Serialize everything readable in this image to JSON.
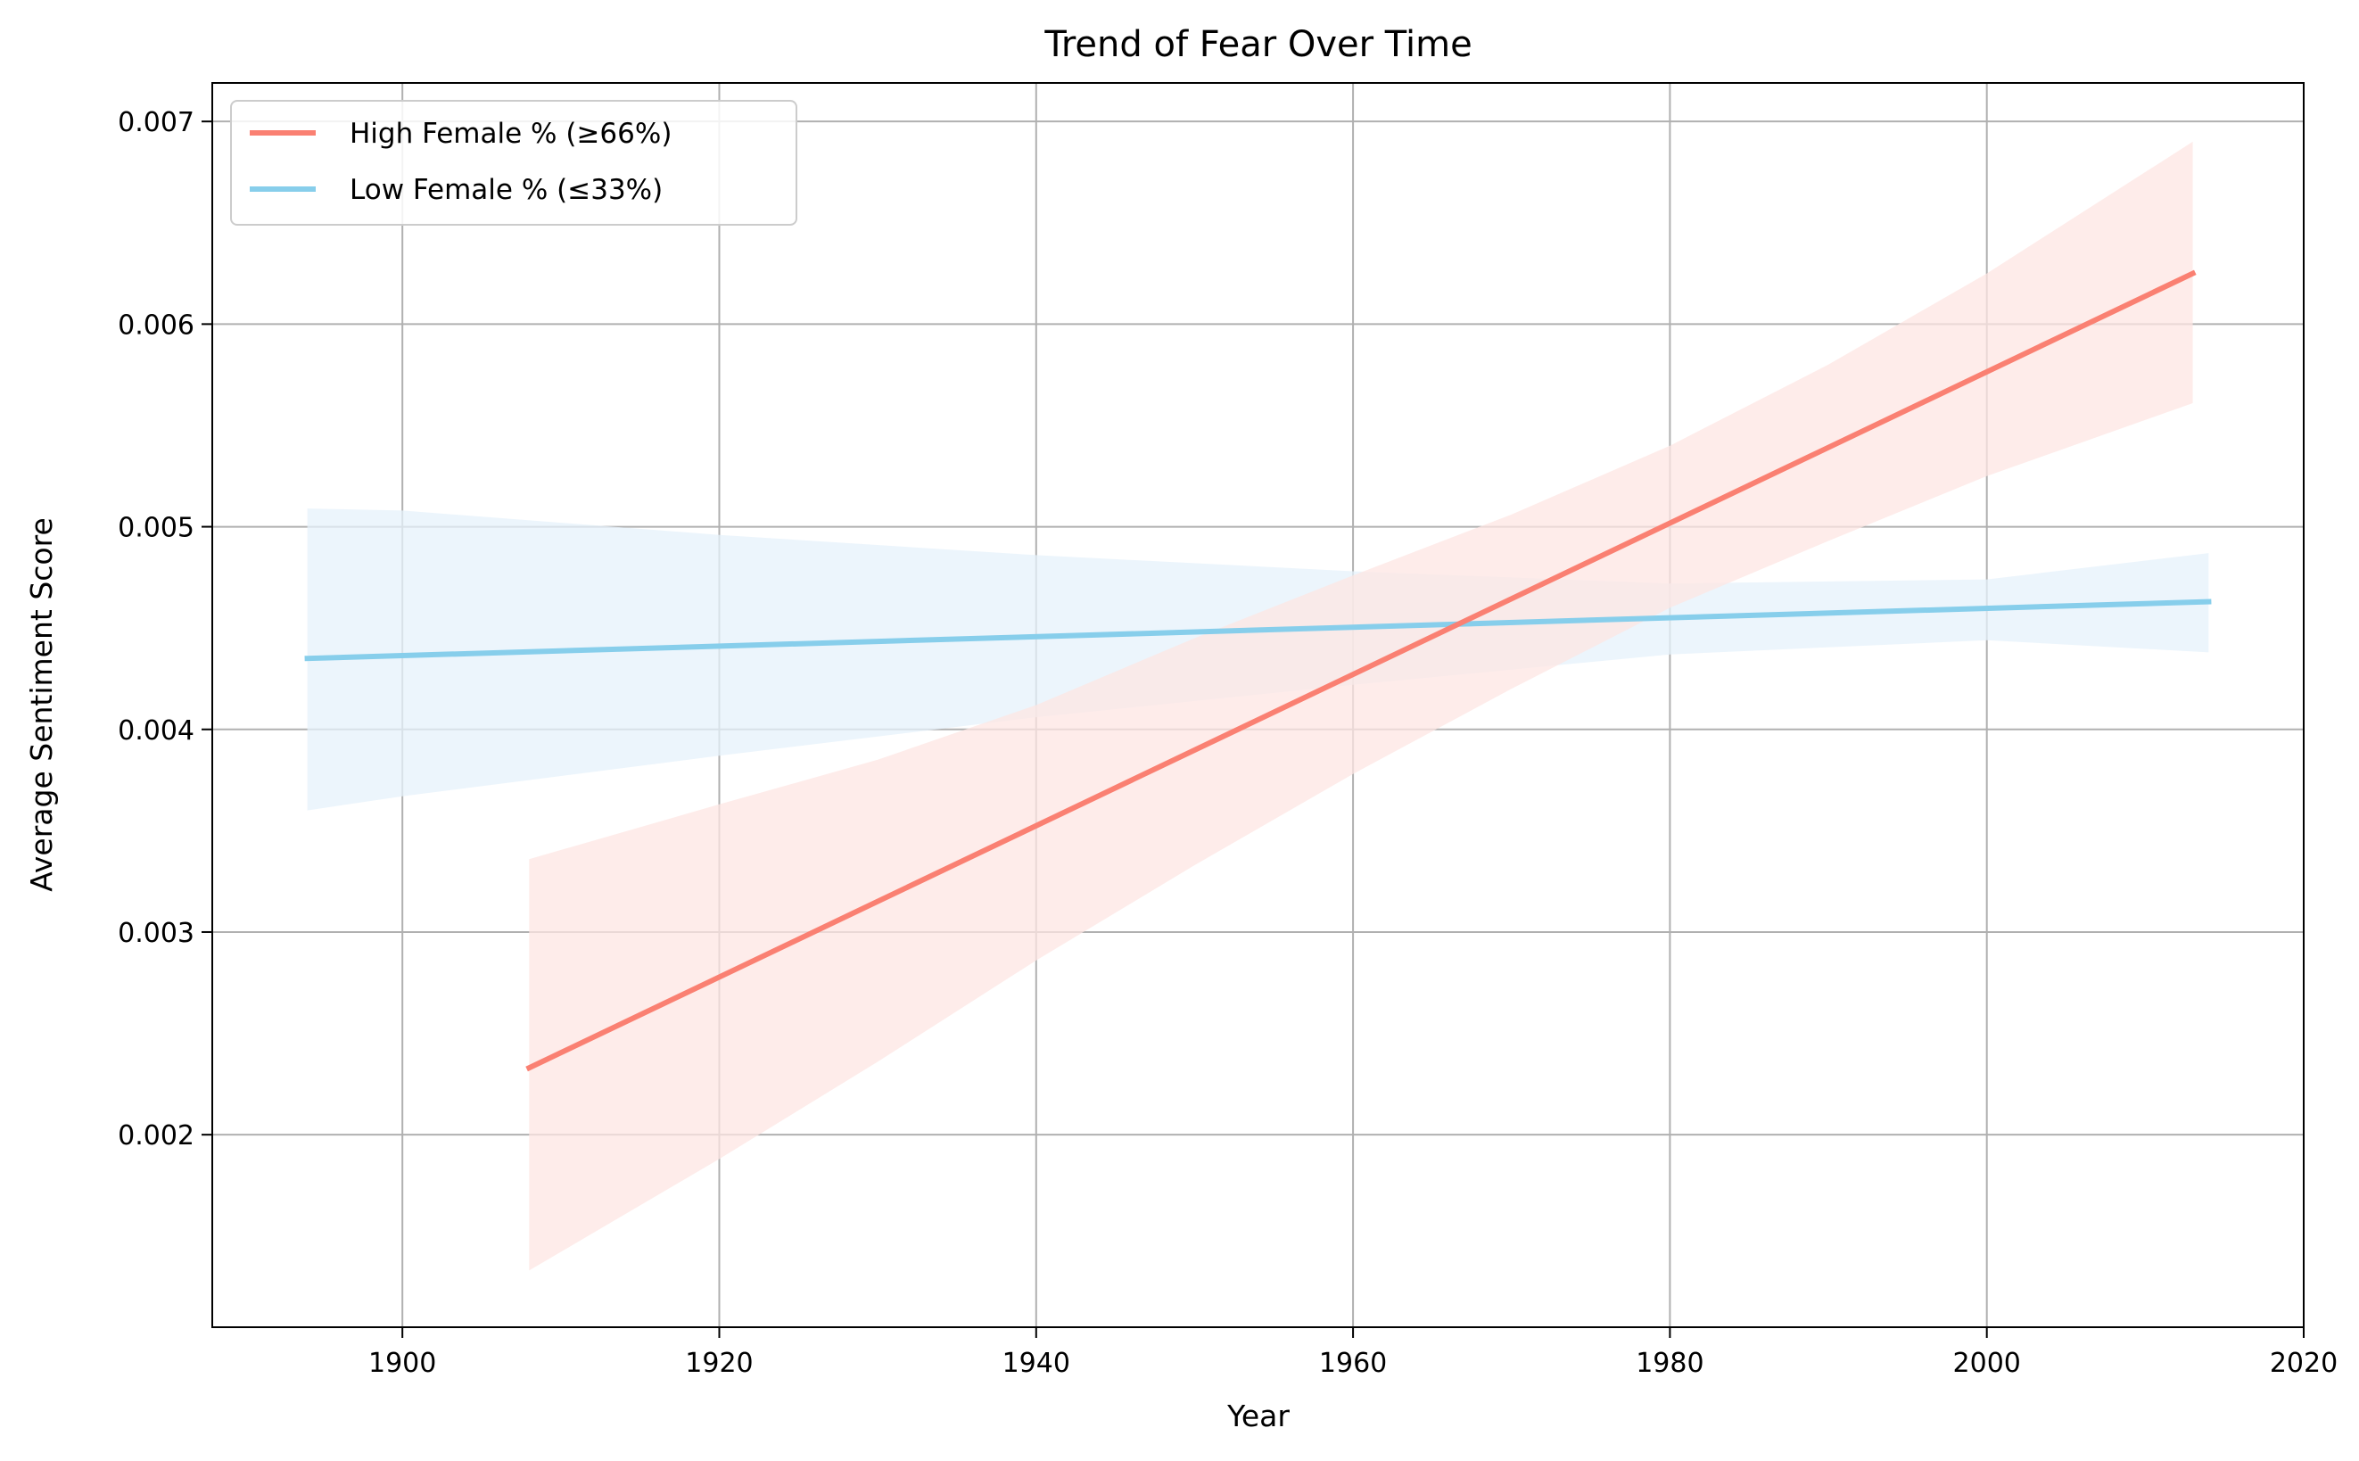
{
  "chart_data": {
    "type": "line",
    "title": "Trend of Fear Over Time",
    "xlabel": "Year",
    "ylabel": "Average Sentiment Score",
    "xlim": [
      1888,
      2020
    ],
    "ylim": [
      0.00105,
      0.00719
    ],
    "x_ticks": [
      1900,
      1920,
      1940,
      1960,
      1980,
      2000,
      2020
    ],
    "x_tick_labels": [
      "1900",
      "1920",
      "1940",
      "1960",
      "1980",
      "2000",
      "2020"
    ],
    "y_ticks": [
      0.002,
      0.003,
      0.004,
      0.005,
      0.006,
      0.007
    ],
    "y_tick_labels": [
      "0.002",
      "0.003",
      "0.004",
      "0.005",
      "0.006",
      "0.007"
    ],
    "grid": true,
    "legend_position": "top-left",
    "series": [
      {
        "name": "High Female % (≥66%)",
        "color": "#fa8072",
        "band_color": "#fde6e3",
        "x": [
          1908,
          2013
        ],
        "y": [
          0.00233,
          0.00625
        ],
        "band": {
          "x": [
            1908,
            1920,
            1930,
            1940,
            1950,
            1960,
            1970,
            1980,
            1990,
            2000,
            2013
          ],
          "upper": [
            0.00336,
            0.00363,
            0.00385,
            0.00412,
            0.00445,
            0.00476,
            0.00506,
            0.0054,
            0.0058,
            0.00625,
            0.0069
          ],
          "lower": [
            0.00133,
            0.00188,
            0.00236,
            0.00286,
            0.00333,
            0.00378,
            0.0042,
            0.0046,
            0.00493,
            0.00525,
            0.00561
          ]
        }
      },
      {
        "name": "Low Female % (≤33%)",
        "color": "#87ceeb",
        "band_color": "#e5f2fb",
        "x": [
          1894,
          2014
        ],
        "y": [
          0.00435,
          0.00463
        ],
        "band": {
          "x": [
            1894,
            1900,
            1920,
            1940,
            1960,
            1980,
            2000,
            2014
          ],
          "upper": [
            0.00509,
            0.00508,
            0.00496,
            0.00486,
            0.00478,
            0.00472,
            0.00474,
            0.00487
          ],
          "lower": [
            0.0036,
            0.00367,
            0.00387,
            0.00406,
            0.00422,
            0.00437,
            0.00444,
            0.00438
          ]
        }
      }
    ]
  }
}
